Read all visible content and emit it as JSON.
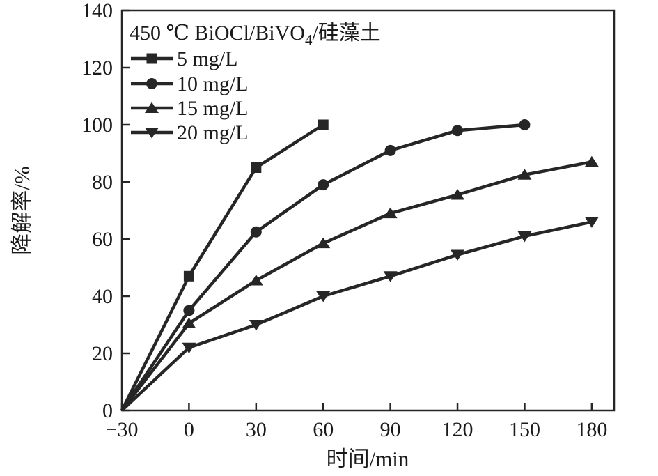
{
  "figure": {
    "background": "#ffffff",
    "line_color": "#262626",
    "text_color": "#1a1a1a"
  },
  "chart_data": {
    "type": "line",
    "legend_title": "450 ℃ BiOCl/BiVO₄/硅藻土",
    "xlabel": "时间/min",
    "ylabel": "降解率/%",
    "xlim": [
      -30,
      190
    ],
    "ylim": [
      0,
      140
    ],
    "x_ticks": [
      -30,
      0,
      30,
      60,
      90,
      120,
      150,
      180
    ],
    "y_ticks": [
      0,
      20,
      40,
      60,
      80,
      100,
      120,
      140
    ],
    "grid": false,
    "legend_position": "top-left",
    "series": [
      {
        "name": "5 mg/L",
        "marker": "square",
        "x": [
          -30,
          0,
          30,
          60
        ],
        "y": [
          0,
          47,
          85,
          100
        ]
      },
      {
        "name": "10 mg/L",
        "marker": "circle",
        "x": [
          -30,
          0,
          30,
          60,
          90,
          120,
          150
        ],
        "y": [
          0,
          35,
          62.5,
          79,
          91,
          98,
          100
        ]
      },
      {
        "name": "15 mg/L",
        "marker": "triangle-up",
        "x": [
          -30,
          0,
          30,
          60,
          90,
          120,
          150,
          180
        ],
        "y": [
          0,
          30.5,
          45.5,
          58.5,
          69,
          75.5,
          82.5,
          87
        ]
      },
      {
        "name": "20 mg/L",
        "marker": "triangle-down",
        "x": [
          -30,
          0,
          30,
          60,
          90,
          120,
          150,
          180
        ],
        "y": [
          0,
          22,
          30,
          40,
          47,
          54.5,
          61,
          66
        ]
      }
    ]
  }
}
